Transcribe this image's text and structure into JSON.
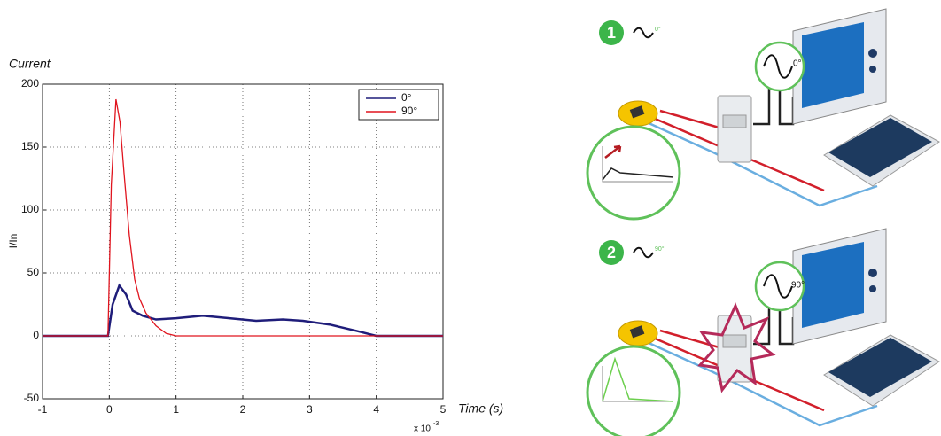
{
  "chart_data": {
    "type": "line",
    "title": "Current",
    "y_label": "I/In",
    "x_label": "Time (s)",
    "x_multiplier": "x 10",
    "x_multiplier_exp": "-3",
    "xlim": [
      -1,
      5
    ],
    "xticks": [
      -1,
      0,
      1,
      2,
      3,
      4,
      5
    ],
    "ylim": [
      -50,
      200
    ],
    "yticks": [
      -50,
      0,
      50,
      100,
      150,
      200
    ],
    "grid": true,
    "legend": "top-right",
    "series": [
      {
        "name": "0°",
        "color": "#1f1d7a",
        "x": [
          -1,
          -0.02,
          0.05,
          0.15,
          0.25,
          0.35,
          0.5,
          0.7,
          1.0,
          1.4,
          1.8,
          2.2,
          2.6,
          2.9,
          3.3,
          3.7,
          4.0,
          4.3,
          5
        ],
        "values": [
          0,
          0,
          25,
          40,
          33,
          20,
          16,
          13,
          14,
          16,
          14,
          12,
          13,
          12,
          9,
          4,
          0,
          0,
          0
        ]
      },
      {
        "name": "90°",
        "color": "#e0141e",
        "x": [
          -1,
          -0.02,
          0.03,
          0.1,
          0.16,
          0.22,
          0.3,
          0.38,
          0.45,
          0.55,
          0.7,
          0.85,
          1.0,
          5
        ],
        "values": [
          0,
          0,
          120,
          188,
          170,
          130,
          80,
          45,
          30,
          18,
          8,
          2,
          0,
          0
        ]
      }
    ]
  },
  "diagram": {
    "steps": [
      {
        "number": "1",
        "phase": "0°",
        "screen_phase": "0°"
      },
      {
        "number": "2",
        "phase": "90°",
        "screen_phase": "90°"
      }
    ]
  }
}
